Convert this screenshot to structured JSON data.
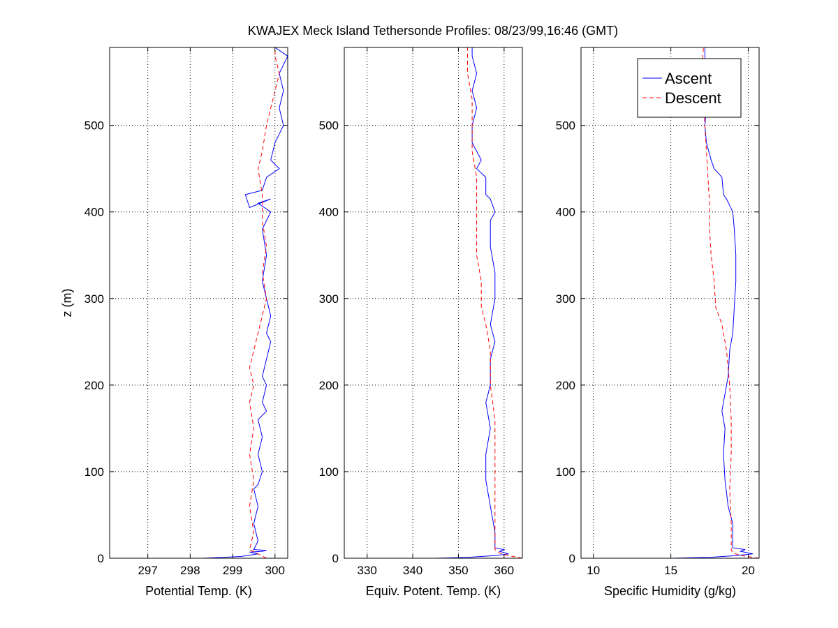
{
  "figure": {
    "title": "KWAJEX Meck Island Tethersonde Profiles: 08/23/99,16:46 (GMT)"
  },
  "legend": {
    "entries": [
      "Ascent",
      "Descent"
    ],
    "placement": "top-right of third panel"
  },
  "colors": {
    "ascent": "#0000ff",
    "descent": "#ff0000",
    "grid": "#000000",
    "background": "#ffffff"
  },
  "chart_data": [
    {
      "type": "line",
      "xlabel": "Potential Temp. (K)",
      "ylabel": "z (m)",
      "xlim": [
        296.1,
        300.3
      ],
      "ylim": [
        0,
        590
      ],
      "xticks": [
        297,
        298,
        299,
        300
      ],
      "yticks": [
        0,
        100,
        200,
        300,
        400,
        500
      ],
      "grid": true,
      "series": [
        {
          "name": "Ascent",
          "style": "solid",
          "points": [
            [
              296.1,
              0
            ],
            [
              298.3,
              0
            ],
            [
              299.2,
              2
            ],
            [
              299.6,
              5
            ],
            [
              299.4,
              7
            ],
            [
              299.7,
              8
            ],
            [
              299.8,
              9
            ],
            [
              299.5,
              10
            ],
            [
              299.6,
              20
            ],
            [
              299.5,
              40
            ],
            [
              299.6,
              60
            ],
            [
              299.5,
              80
            ],
            [
              299.6,
              85
            ],
            [
              299.7,
              100
            ],
            [
              299.6,
              120
            ],
            [
              299.7,
              140
            ],
            [
              299.6,
              160
            ],
            [
              299.8,
              170
            ],
            [
              299.7,
              180
            ],
            [
              299.8,
              200
            ],
            [
              299.7,
              210
            ],
            [
              299.8,
              230
            ],
            [
              299.9,
              250
            ],
            [
              299.8,
              260
            ],
            [
              299.9,
              280
            ],
            [
              299.8,
              300
            ],
            [
              299.7,
              320
            ],
            [
              299.8,
              350
            ],
            [
              299.7,
              380
            ],
            [
              299.9,
              400
            ],
            [
              299.6,
              410
            ],
            [
              299.9,
              415
            ],
            [
              299.4,
              405
            ],
            [
              299.3,
              420
            ],
            [
              299.7,
              425
            ],
            [
              299.8,
              440
            ],
            [
              300.1,
              450
            ],
            [
              299.9,
              460
            ],
            [
              300.0,
              480
            ],
            [
              300.2,
              500
            ],
            [
              300.1,
              520
            ],
            [
              300.2,
              540
            ],
            [
              300.1,
              560
            ],
            [
              300.3,
              580
            ],
            [
              300.0,
              590
            ]
          ]
        },
        {
          "name": "Descent",
          "style": "dashed",
          "points": [
            [
              299.8,
              0
            ],
            [
              299.6,
              5
            ],
            [
              299.4,
              10
            ],
            [
              299.5,
              30
            ],
            [
              299.4,
              60
            ],
            [
              299.5,
              90
            ],
            [
              299.4,
              120
            ],
            [
              299.5,
              150
            ],
            [
              299.4,
              180
            ],
            [
              299.5,
              200
            ],
            [
              299.4,
              220
            ],
            [
              299.5,
              240
            ],
            [
              299.6,
              260
            ],
            [
              299.7,
              280
            ],
            [
              299.8,
              300
            ],
            [
              299.7,
              330
            ],
            [
              299.8,
              360
            ],
            [
              299.7,
              390
            ],
            [
              299.7,
              420
            ],
            [
              299.6,
              450
            ],
            [
              299.7,
              470
            ],
            [
              299.8,
              500
            ],
            [
              299.9,
              520
            ],
            [
              300.0,
              540
            ],
            [
              300.1,
              560
            ],
            [
              300.0,
              580
            ],
            [
              300.0,
              590
            ]
          ]
        }
      ]
    },
    {
      "type": "line",
      "xlabel": "Equiv. Potent. Temp. (K)",
      "ylabel": "",
      "xlim": [
        325,
        364
      ],
      "ylim": [
        0,
        590
      ],
      "xticks": [
        330,
        340,
        350,
        360
      ],
      "yticks": [
        0,
        100,
        200,
        300,
        400,
        500
      ],
      "grid": true,
      "series": [
        {
          "name": "Ascent",
          "style": "solid",
          "points": [
            [
              325,
              0
            ],
            [
              345,
              0
            ],
            [
              352,
              1
            ],
            [
              358,
              3
            ],
            [
              361,
              5
            ],
            [
              359,
              8
            ],
            [
              360,
              10
            ],
            [
              358,
              12
            ],
            [
              358,
              30
            ],
            [
              357,
              60
            ],
            [
              356,
              90
            ],
            [
              356,
              120
            ],
            [
              357,
              150
            ],
            [
              356,
              180
            ],
            [
              357,
              200
            ],
            [
              357,
              230
            ],
            [
              358,
              250
            ],
            [
              357,
              270
            ],
            [
              358,
              300
            ],
            [
              358,
              330
            ],
            [
              357,
              360
            ],
            [
              357,
              390
            ],
            [
              358,
              400
            ],
            [
              357,
              415
            ],
            [
              356,
              420
            ],
            [
              356,
              440
            ],
            [
              354,
              450
            ],
            [
              355,
              460
            ],
            [
              353,
              480
            ],
            [
              353,
              500
            ],
            [
              354,
              520
            ],
            [
              353,
              540
            ],
            [
              354,
              560
            ],
            [
              353,
              580
            ],
            [
              353,
              590
            ]
          ]
        },
        {
          "name": "Descent",
          "style": "dashed",
          "points": [
            [
              364,
              0
            ],
            [
              361,
              3
            ],
            [
              359,
              6
            ],
            [
              358,
              10
            ],
            [
              358,
              40
            ],
            [
              358,
              80
            ],
            [
              358,
              120
            ],
            [
              358,
              160
            ],
            [
              357,
              200
            ],
            [
              357,
              240
            ],
            [
              356,
              270
            ],
            [
              355,
              290
            ],
            [
              355,
              320
            ],
            [
              354,
              350
            ],
            [
              354,
              380
            ],
            [
              354,
              410
            ],
            [
              354,
              440
            ],
            [
              353,
              470
            ],
            [
              353,
              500
            ],
            [
              353,
              530
            ],
            [
              352,
              560
            ],
            [
              352,
              590
            ]
          ]
        }
      ]
    },
    {
      "type": "line",
      "xlabel": "Specific Humidity (g/kg)",
      "ylabel": "",
      "xlim": [
        9.2,
        20.7
      ],
      "ylim": [
        0,
        590
      ],
      "xticks": [
        10,
        15,
        20
      ],
      "yticks": [
        0,
        100,
        200,
        300,
        400,
        500
      ],
      "grid": true,
      "series": [
        {
          "name": "Ascent",
          "style": "solid",
          "points": [
            [
              9.2,
              0
            ],
            [
              15,
              0
            ],
            [
              17.5,
              1
            ],
            [
              19.2,
              3
            ],
            [
              20.3,
              5
            ],
            [
              19.5,
              8
            ],
            [
              19.8,
              10
            ],
            [
              19,
              12
            ],
            [
              19,
              40
            ],
            [
              18.7,
              60
            ],
            [
              18.5,
              90
            ],
            [
              18.4,
              120
            ],
            [
              18.5,
              150
            ],
            [
              18.3,
              170
            ],
            [
              18.5,
              190
            ],
            [
              18.7,
              210
            ],
            [
              18.8,
              240
            ],
            [
              19,
              260
            ],
            [
              19.1,
              290
            ],
            [
              19.2,
              320
            ],
            [
              19.2,
              350
            ],
            [
              19.1,
              380
            ],
            [
              19,
              400
            ],
            [
              18.6,
              415
            ],
            [
              18.4,
              420
            ],
            [
              18.3,
              440
            ],
            [
              17.8,
              450
            ],
            [
              17.6,
              460
            ],
            [
              17.3,
              480
            ],
            [
              17.2,
              500
            ],
            [
              17.3,
              520
            ],
            [
              17.1,
              540
            ],
            [
              17.3,
              560
            ],
            [
              17.2,
              580
            ],
            [
              17.2,
              590
            ]
          ]
        },
        {
          "name": "Descent",
          "style": "dashed",
          "points": [
            [
              20.7,
              0
            ],
            [
              19.6,
              3
            ],
            [
              19,
              6
            ],
            [
              18.9,
              10
            ],
            [
              18.9,
              40
            ],
            [
              18.8,
              80
            ],
            [
              18.9,
              120
            ],
            [
              18.9,
              160
            ],
            [
              18.8,
              200
            ],
            [
              18.6,
              240
            ],
            [
              18.3,
              270
            ],
            [
              17.9,
              290
            ],
            [
              17.8,
              320
            ],
            [
              17.6,
              350
            ],
            [
              17.5,
              380
            ],
            [
              17.5,
              410
            ],
            [
              17.4,
              440
            ],
            [
              17.3,
              470
            ],
            [
              17.2,
              500
            ],
            [
              17.1,
              530
            ],
            [
              17.0,
              560
            ],
            [
              17.1,
              590
            ]
          ]
        }
      ]
    }
  ]
}
